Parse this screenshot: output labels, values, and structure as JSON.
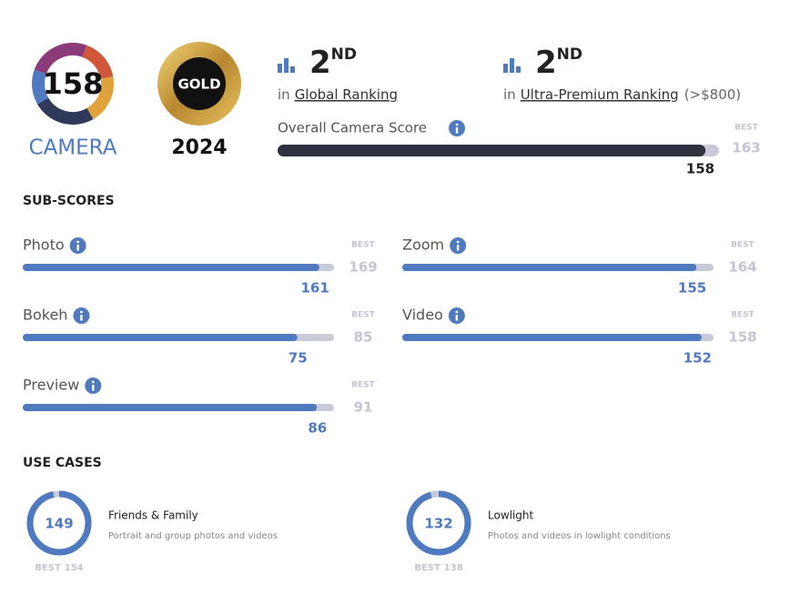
{
  "badge": {
    "score": 158,
    "label": "CAMERA"
  },
  "award": {
    "label": "GOLD",
    "year": "2024"
  },
  "rankings": [
    {
      "rank": 2,
      "suffix": "ND",
      "prefix": "in",
      "name": "Global Ranking"
    },
    {
      "rank": 2,
      "suffix": "ND",
      "prefix": "in",
      "name": "Ultra-Premium Ranking",
      "note": "(>$800)"
    }
  ],
  "overall": {
    "label": "Overall Camera Score",
    "score": 158,
    "best_label": "BEST",
    "best": 163
  },
  "sub_scores": {
    "title": "SUB-SCORES",
    "best_label": "BEST",
    "items": [
      {
        "name": "Photo",
        "score": 161,
        "best": 169
      },
      {
        "name": "Zoom",
        "score": 155,
        "best": 164
      },
      {
        "name": "Bokeh",
        "score": 75,
        "best": 85
      },
      {
        "name": "Video",
        "score": 152,
        "best": 158
      },
      {
        "name": "Preview",
        "score": 86,
        "best": 91
      }
    ]
  },
  "use_cases": {
    "title": "USE CASES",
    "best_label": "BEST",
    "items": [
      {
        "name": "Friends & Family",
        "description": "Portrait and group photos and videos",
        "score": 149,
        "best": 154
      },
      {
        "name": "Lowlight",
        "description": "Photos and videos in lowlight conditions",
        "score": 132,
        "best": 138
      }
    ]
  }
}
